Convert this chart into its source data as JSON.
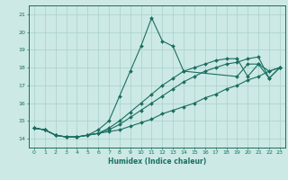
{
  "xlabel": "Humidex (Indice chaleur)",
  "bg_color": "#cce9e5",
  "grid_color": "#add4cf",
  "line_color": "#1a6e60",
  "xlim": [
    -0.5,
    23.5
  ],
  "ylim": [
    13.5,
    21.5
  ],
  "yticks": [
    14,
    15,
    16,
    17,
    18,
    19,
    20,
    21
  ],
  "xticks": [
    0,
    1,
    2,
    3,
    4,
    5,
    6,
    7,
    8,
    9,
    10,
    11,
    12,
    13,
    14,
    15,
    16,
    17,
    18,
    19,
    20,
    21,
    22,
    23
  ],
  "series": [
    {
      "x": [
        0,
        1,
        2,
        3,
        4,
        5,
        6,
        7,
        8,
        9,
        10,
        11,
        12,
        13,
        14,
        19,
        20,
        21,
        22,
        23
      ],
      "y": [
        14.6,
        14.5,
        14.2,
        14.1,
        14.1,
        14.2,
        14.5,
        15.0,
        16.4,
        17.8,
        19.2,
        20.8,
        19.5,
        19.2,
        17.8,
        17.5,
        18.2,
        18.2,
        17.8,
        18.0
      ]
    },
    {
      "x": [
        0,
        1,
        2,
        3,
        4,
        5,
        6,
        7,
        8,
        9,
        10,
        11,
        12,
        13,
        14,
        15,
        16,
        17,
        18,
        19,
        20,
        21,
        22,
        23
      ],
      "y": [
        14.6,
        14.5,
        14.2,
        14.1,
        14.1,
        14.2,
        14.3,
        14.4,
        14.5,
        14.7,
        14.9,
        15.1,
        15.4,
        15.6,
        15.8,
        16.0,
        16.3,
        16.5,
        16.8,
        17.0,
        17.3,
        17.5,
        17.8,
        18.0
      ]
    },
    {
      "x": [
        0,
        1,
        2,
        3,
        4,
        5,
        6,
        7,
        8,
        9,
        10,
        11,
        12,
        13,
        14,
        15,
        16,
        17,
        18,
        19,
        20,
        21,
        22,
        23
      ],
      "y": [
        14.6,
        14.5,
        14.2,
        14.1,
        14.1,
        14.2,
        14.3,
        14.5,
        14.8,
        15.2,
        15.6,
        16.0,
        16.4,
        16.8,
        17.2,
        17.5,
        17.8,
        18.0,
        18.2,
        18.3,
        18.5,
        18.6,
        17.4,
        18.0
      ]
    },
    {
      "x": [
        0,
        1,
        2,
        3,
        4,
        5,
        6,
        7,
        8,
        9,
        10,
        11,
        12,
        13,
        14,
        15,
        16,
        17,
        18,
        19,
        20,
        21,
        22,
        23
      ],
      "y": [
        14.6,
        14.5,
        14.2,
        14.1,
        14.1,
        14.2,
        14.3,
        14.6,
        15.0,
        15.5,
        16.0,
        16.5,
        17.0,
        17.4,
        17.8,
        18.0,
        18.2,
        18.4,
        18.5,
        18.5,
        17.5,
        18.2,
        17.4,
        18.0
      ]
    }
  ]
}
